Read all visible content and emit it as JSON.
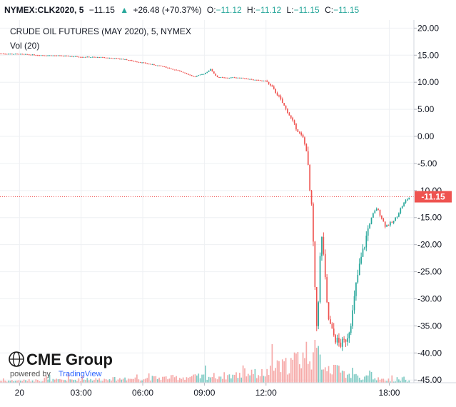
{
  "header": {
    "symbol": "NYMEX:CLK2020, 5",
    "last": "−11.15",
    "arrow": "▲",
    "change": "+26.48 (+70.37%)",
    "open_label": "O:",
    "open_value": "−11.12",
    "high_label": "H:",
    "high_value": "−11.12",
    "low_label": "L:",
    "low_value": "−11.15",
    "close_label": "C:",
    "close_value": "−11.15"
  },
  "logo": {
    "brand": "CME Group",
    "powered_by": "powered by",
    "tradingview": "TradingView"
  },
  "chart_data": {
    "type": "candlestick",
    "title": "CRUDE OIL FUTURES (MAY 2020), 5, NYMEX",
    "volume_label": "Vol (20)",
    "x_tick_labels": [
      "20",
      "03:00",
      "06:00",
      "09:00",
      "12:00",
      "18:00"
    ],
    "x_tick_hours": [
      0,
      3,
      6,
      9,
      12,
      18
    ],
    "x_range_hours": [
      -0.95,
      19.2
    ],
    "y_tick_labels": [
      "20.00",
      "15.00",
      "10.00",
      "5.00",
      "0.00",
      "-5.00",
      "-10.00",
      "-15.00",
      "-20.00",
      "-25.00",
      "-30.00",
      "-35.00",
      "-40.00",
      "-45.00"
    ],
    "y_tick_values": [
      20,
      15,
      10,
      5,
      0,
      -5,
      -10,
      -15,
      -20,
      -25,
      -30,
      -35,
      -40,
      -45
    ],
    "ylim": [
      -45.5,
      21.5
    ],
    "last_price": -11.15,
    "last_price_label": "-11.15",
    "grid": true,
    "colors": {
      "up": "#26a69a",
      "down": "#ef5350",
      "vol_up": "#80cbc4",
      "vol_down": "#f6a9a8",
      "last_line": "#ef5350"
    },
    "price_path": [
      [
        -0.95,
        15.3
      ],
      [
        0.0,
        15.2
      ],
      [
        1.0,
        15.0
      ],
      [
        2.0,
        14.9
      ],
      [
        3.0,
        14.7
      ],
      [
        4.0,
        14.6
      ],
      [
        5.0,
        14.3
      ],
      [
        6.0,
        13.6
      ],
      [
        7.0,
        12.9
      ],
      [
        8.0,
        11.8
      ],
      [
        8.5,
        11.0
      ],
      [
        9.0,
        11.6
      ],
      [
        9.3,
        12.4
      ],
      [
        9.6,
        11.0
      ],
      [
        10.0,
        10.8
      ],
      [
        10.5,
        10.9
      ],
      [
        11.0,
        10.7
      ],
      [
        11.5,
        10.4
      ],
      [
        12.0,
        10.2
      ],
      [
        12.3,
        9.0
      ],
      [
        12.6,
        7.5
      ],
      [
        12.9,
        5.5
      ],
      [
        13.2,
        3.5
      ],
      [
        13.5,
        1.3
      ],
      [
        13.8,
        -0.3
      ],
      [
        14.0,
        -3.0
      ],
      [
        14.1,
        -9.0
      ],
      [
        14.25,
        -14.5
      ],
      [
        14.35,
        -25.0
      ],
      [
        14.45,
        -36.0
      ],
      [
        14.55,
        -30.0
      ],
      [
        14.65,
        -21.0
      ],
      [
        14.75,
        -18.0
      ],
      [
        14.85,
        -25.0
      ],
      [
        15.0,
        -33.0
      ],
      [
        15.2,
        -36.0
      ],
      [
        15.4,
        -37.5
      ],
      [
        15.6,
        -38.5
      ],
      [
        15.8,
        -38.0
      ],
      [
        16.0,
        -36.5
      ],
      [
        16.2,
        -33.0
      ],
      [
        16.4,
        -27.0
      ],
      [
        16.6,
        -23.0
      ],
      [
        16.8,
        -20.0
      ],
      [
        17.0,
        -16.5
      ],
      [
        17.2,
        -14.5
      ],
      [
        17.4,
        -13.2
      ],
      [
        17.6,
        -14.8
      ],
      [
        17.8,
        -16.5
      ],
      [
        18.0,
        -16.2
      ],
      [
        18.2,
        -15.8
      ],
      [
        18.4,
        -14.5
      ],
      [
        18.6,
        -13.0
      ],
      [
        18.8,
        -11.9
      ],
      [
        19.0,
        -11.15
      ]
    ],
    "volume_profile": [
      [
        -0.95,
        0.5
      ],
      [
        2.0,
        0.7
      ],
      [
        5.0,
        1.0
      ],
      [
        8.0,
        1.4
      ],
      [
        10.0,
        1.8
      ],
      [
        12.0,
        2.5
      ],
      [
        13.0,
        4.5
      ],
      [
        13.5,
        6.0
      ],
      [
        14.0,
        8.0
      ],
      [
        14.5,
        7.0
      ],
      [
        15.0,
        4.0
      ],
      [
        16.0,
        2.0
      ],
      [
        17.0,
        1.2
      ],
      [
        18.0,
        0.7
      ],
      [
        19.2,
        0.4
      ]
    ]
  }
}
